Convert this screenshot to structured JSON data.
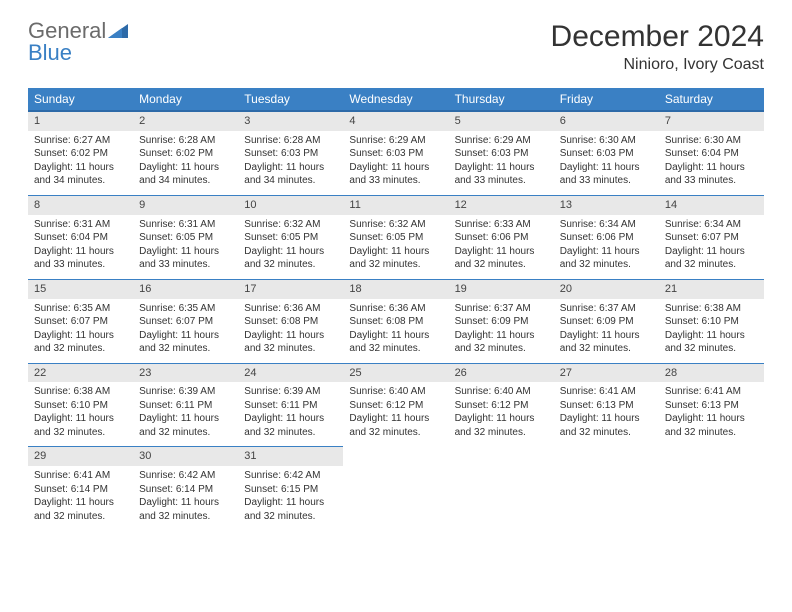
{
  "logo": {
    "line1": "General",
    "line2": "Blue"
  },
  "title": "December 2024",
  "location": "Ninioro, Ivory Coast",
  "colors": {
    "header_bg": "#3a80c4",
    "header_border": "#2d6aa8",
    "daynum_bg": "#e8e8e8",
    "text": "#333333",
    "logo_gray": "#6b6b6b",
    "logo_blue": "#3a80c4"
  },
  "weekdays": [
    "Sunday",
    "Monday",
    "Tuesday",
    "Wednesday",
    "Thursday",
    "Friday",
    "Saturday"
  ],
  "weeks": [
    [
      {
        "n": "1",
        "sr": "Sunrise: 6:27 AM",
        "ss": "Sunset: 6:02 PM",
        "d1": "Daylight: 11 hours",
        "d2": "and 34 minutes."
      },
      {
        "n": "2",
        "sr": "Sunrise: 6:28 AM",
        "ss": "Sunset: 6:02 PM",
        "d1": "Daylight: 11 hours",
        "d2": "and 34 minutes."
      },
      {
        "n": "3",
        "sr": "Sunrise: 6:28 AM",
        "ss": "Sunset: 6:03 PM",
        "d1": "Daylight: 11 hours",
        "d2": "and 34 minutes."
      },
      {
        "n": "4",
        "sr": "Sunrise: 6:29 AM",
        "ss": "Sunset: 6:03 PM",
        "d1": "Daylight: 11 hours",
        "d2": "and 33 minutes."
      },
      {
        "n": "5",
        "sr": "Sunrise: 6:29 AM",
        "ss": "Sunset: 6:03 PM",
        "d1": "Daylight: 11 hours",
        "d2": "and 33 minutes."
      },
      {
        "n": "6",
        "sr": "Sunrise: 6:30 AM",
        "ss": "Sunset: 6:03 PM",
        "d1": "Daylight: 11 hours",
        "d2": "and 33 minutes."
      },
      {
        "n": "7",
        "sr": "Sunrise: 6:30 AM",
        "ss": "Sunset: 6:04 PM",
        "d1": "Daylight: 11 hours",
        "d2": "and 33 minutes."
      }
    ],
    [
      {
        "n": "8",
        "sr": "Sunrise: 6:31 AM",
        "ss": "Sunset: 6:04 PM",
        "d1": "Daylight: 11 hours",
        "d2": "and 33 minutes."
      },
      {
        "n": "9",
        "sr": "Sunrise: 6:31 AM",
        "ss": "Sunset: 6:05 PM",
        "d1": "Daylight: 11 hours",
        "d2": "and 33 minutes."
      },
      {
        "n": "10",
        "sr": "Sunrise: 6:32 AM",
        "ss": "Sunset: 6:05 PM",
        "d1": "Daylight: 11 hours",
        "d2": "and 32 minutes."
      },
      {
        "n": "11",
        "sr": "Sunrise: 6:32 AM",
        "ss": "Sunset: 6:05 PM",
        "d1": "Daylight: 11 hours",
        "d2": "and 32 minutes."
      },
      {
        "n": "12",
        "sr": "Sunrise: 6:33 AM",
        "ss": "Sunset: 6:06 PM",
        "d1": "Daylight: 11 hours",
        "d2": "and 32 minutes."
      },
      {
        "n": "13",
        "sr": "Sunrise: 6:34 AM",
        "ss": "Sunset: 6:06 PM",
        "d1": "Daylight: 11 hours",
        "d2": "and 32 minutes."
      },
      {
        "n": "14",
        "sr": "Sunrise: 6:34 AM",
        "ss": "Sunset: 6:07 PM",
        "d1": "Daylight: 11 hours",
        "d2": "and 32 minutes."
      }
    ],
    [
      {
        "n": "15",
        "sr": "Sunrise: 6:35 AM",
        "ss": "Sunset: 6:07 PM",
        "d1": "Daylight: 11 hours",
        "d2": "and 32 minutes."
      },
      {
        "n": "16",
        "sr": "Sunrise: 6:35 AM",
        "ss": "Sunset: 6:07 PM",
        "d1": "Daylight: 11 hours",
        "d2": "and 32 minutes."
      },
      {
        "n": "17",
        "sr": "Sunrise: 6:36 AM",
        "ss": "Sunset: 6:08 PM",
        "d1": "Daylight: 11 hours",
        "d2": "and 32 minutes."
      },
      {
        "n": "18",
        "sr": "Sunrise: 6:36 AM",
        "ss": "Sunset: 6:08 PM",
        "d1": "Daylight: 11 hours",
        "d2": "and 32 minutes."
      },
      {
        "n": "19",
        "sr": "Sunrise: 6:37 AM",
        "ss": "Sunset: 6:09 PM",
        "d1": "Daylight: 11 hours",
        "d2": "and 32 minutes."
      },
      {
        "n": "20",
        "sr": "Sunrise: 6:37 AM",
        "ss": "Sunset: 6:09 PM",
        "d1": "Daylight: 11 hours",
        "d2": "and 32 minutes."
      },
      {
        "n": "21",
        "sr": "Sunrise: 6:38 AM",
        "ss": "Sunset: 6:10 PM",
        "d1": "Daylight: 11 hours",
        "d2": "and 32 minutes."
      }
    ],
    [
      {
        "n": "22",
        "sr": "Sunrise: 6:38 AM",
        "ss": "Sunset: 6:10 PM",
        "d1": "Daylight: 11 hours",
        "d2": "and 32 minutes."
      },
      {
        "n": "23",
        "sr": "Sunrise: 6:39 AM",
        "ss": "Sunset: 6:11 PM",
        "d1": "Daylight: 11 hours",
        "d2": "and 32 minutes."
      },
      {
        "n": "24",
        "sr": "Sunrise: 6:39 AM",
        "ss": "Sunset: 6:11 PM",
        "d1": "Daylight: 11 hours",
        "d2": "and 32 minutes."
      },
      {
        "n": "25",
        "sr": "Sunrise: 6:40 AM",
        "ss": "Sunset: 6:12 PM",
        "d1": "Daylight: 11 hours",
        "d2": "and 32 minutes."
      },
      {
        "n": "26",
        "sr": "Sunrise: 6:40 AM",
        "ss": "Sunset: 6:12 PM",
        "d1": "Daylight: 11 hours",
        "d2": "and 32 minutes."
      },
      {
        "n": "27",
        "sr": "Sunrise: 6:41 AM",
        "ss": "Sunset: 6:13 PM",
        "d1": "Daylight: 11 hours",
        "d2": "and 32 minutes."
      },
      {
        "n": "28",
        "sr": "Sunrise: 6:41 AM",
        "ss": "Sunset: 6:13 PM",
        "d1": "Daylight: 11 hours",
        "d2": "and 32 minutes."
      }
    ],
    [
      {
        "n": "29",
        "sr": "Sunrise: 6:41 AM",
        "ss": "Sunset: 6:14 PM",
        "d1": "Daylight: 11 hours",
        "d2": "and 32 minutes."
      },
      {
        "n": "30",
        "sr": "Sunrise: 6:42 AM",
        "ss": "Sunset: 6:14 PM",
        "d1": "Daylight: 11 hours",
        "d2": "and 32 minutes."
      },
      {
        "n": "31",
        "sr": "Sunrise: 6:42 AM",
        "ss": "Sunset: 6:15 PM",
        "d1": "Daylight: 11 hours",
        "d2": "and 32 minutes."
      },
      null,
      null,
      null,
      null
    ]
  ]
}
